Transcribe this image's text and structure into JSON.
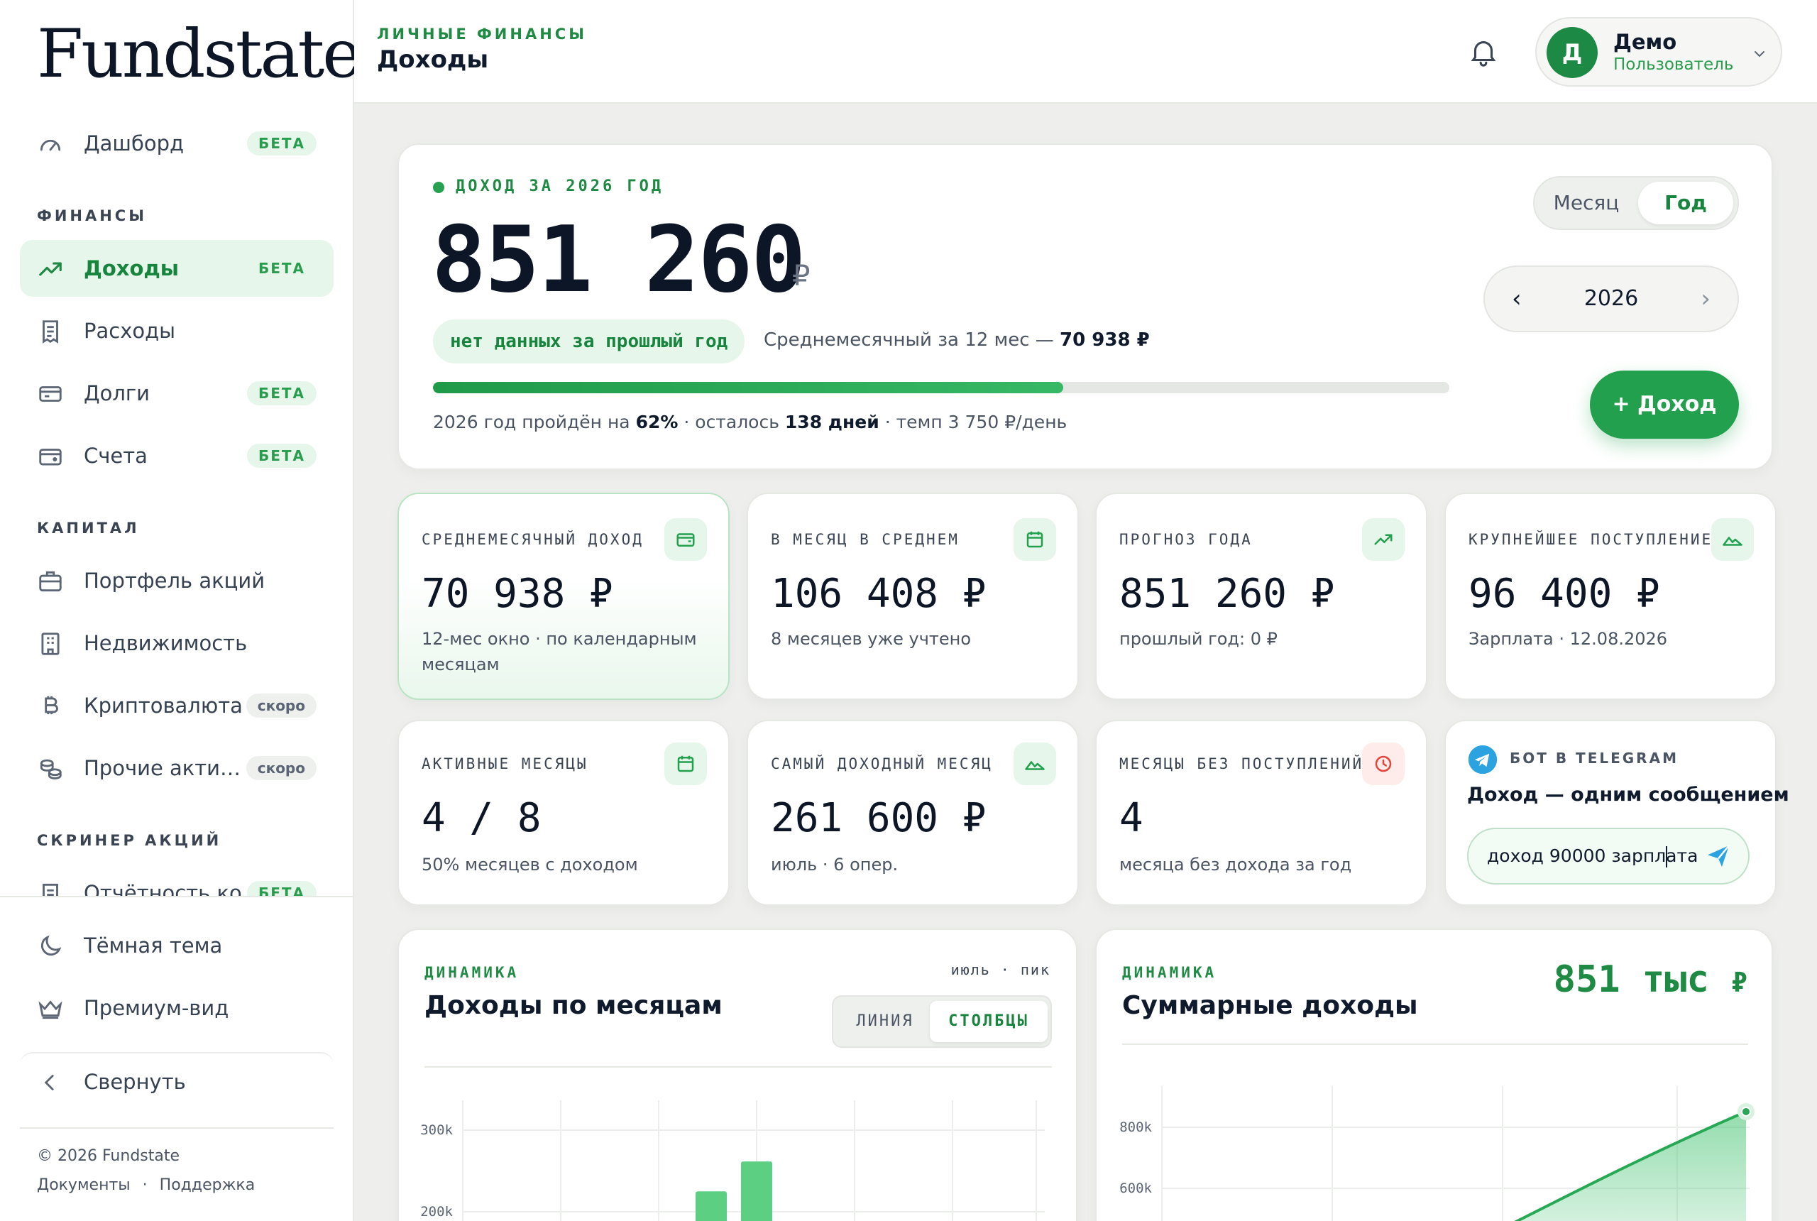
{
  "brand": {
    "logo": "Fundstate"
  },
  "sidebar": {
    "items": [
      {
        "label": "Дашборд",
        "badge": "БЕТА"
      },
      {
        "label": "Доходы",
        "badge": "БЕТА"
      },
      {
        "label": "Расходы",
        "badge": ""
      },
      {
        "label": "Долги",
        "badge": "БЕТА"
      },
      {
        "label": "Счета",
        "badge": "БЕТА"
      },
      {
        "label": "Портфель акций",
        "badge": ""
      },
      {
        "label": "Недвижимость",
        "badge": ""
      },
      {
        "label": "Криптовалюта",
        "badge": "скоро"
      },
      {
        "label": "Прочие акти…",
        "badge": "скоро"
      },
      {
        "label": "Отчётность ко…",
        "badge": "БЕТА"
      }
    ],
    "sections": {
      "finance": "ФИНАНСЫ",
      "capital": "КАПИТАЛ",
      "screener": "СКРИНЕР АКЦИЙ"
    },
    "bottom": {
      "dark_theme": "Тёмная тема",
      "premium": "Премиум-вид",
      "collapse": "Свернуть"
    },
    "footer": {
      "copyright": "© 2026 Fundstate",
      "docs": "Документы",
      "sep": "·",
      "support": "Поддержка"
    }
  },
  "header": {
    "section": "ЛИЧНЫЕ ФИНАНСЫ",
    "title": "Доходы",
    "user": {
      "initial": "Д",
      "name": "Демо",
      "role": "Пользователь"
    }
  },
  "hero": {
    "label": "ДОХОД ЗА 2026 ГОД",
    "value": "851 260",
    "currency": "₽",
    "pill": "нет данных за прошлый год",
    "avg_prefix": "Среднемесячный за 12 мес —",
    "avg_value": "70 938 ₽",
    "progress": 0.62,
    "foot_a": "2026 год пройдён на",
    "foot_pct": "62%",
    "foot_b": "· осталось",
    "foot_days": "138 дней",
    "foot_c": "· темп 3 750 ₽/день",
    "period_month": "Месяц",
    "period_year": "Год",
    "year": "2026",
    "prev": "‹",
    "next": "›",
    "add_button": "+ Доход"
  },
  "stats": [
    {
      "label": "СРЕДНЕМЕСЯЧНЫЙ ДОХОД",
      "value": "70 938 ₽",
      "sub": "12-мес окно · по календарным месяцам"
    },
    {
      "label": "В МЕСЯЦ В СРЕДНЕМ",
      "value": "106 408 ₽",
      "sub": "8 месяцев уже учтено"
    },
    {
      "label": "ПРОГНОЗ ГОДА",
      "value": "851 260 ₽",
      "sub": "прошлый год: 0 ₽"
    },
    {
      "label": "КРУПНЕЙШЕЕ ПОСТУПЛЕНИЕ",
      "value": "96 400 ₽",
      "sub": "Зарплата · 12.08.2026"
    },
    {
      "label": "АКТИВНЫЕ МЕСЯЦЫ",
      "value": "4 / 8",
      "sub": "50% месяцев с доходом"
    },
    {
      "label": "САМЫЙ ДОХОДНЫЙ МЕСЯЦ",
      "value": "261 600 ₽",
      "sub": "июль · 6 опер."
    },
    {
      "label": "МЕСЯЦЫ БЕЗ ПОСТУПЛЕНИЙ",
      "value": "4",
      "sub": "месяца без дохода за год"
    }
  ],
  "telegram": {
    "label": "БОТ В TELEGRAM",
    "title": "Доход — одним сообщением",
    "input_value": "доход 90000 зарплата"
  },
  "colors": {
    "accent": "#22a04d",
    "accent_dark": "#17853d",
    "accent_light": "#e7f6ea",
    "danger": "#e2453c"
  },
  "charts": {
    "monthly": {
      "kicker": "ДИНАМИКА",
      "title": "Доходы по месяцам",
      "peak": "июль · пик",
      "mode_line": "ЛИНИЯ",
      "mode_bars": "СТОЛБЦЫ"
    },
    "cumulative": {
      "kicker": "ДИНАМИКА",
      "title": "Суммарные доходы",
      "total_value": "851 тыс",
      "total_currency": "₽"
    }
  },
  "chart_data": [
    {
      "type": "bar",
      "title": "Доходы по месяцам",
      "y_ticks": [
        "300k",
        "200k"
      ],
      "y_tick_values": [
        300000,
        200000
      ],
      "values_visible": [
        225000,
        261600,
        0
      ],
      "peak_label": "июль"
    },
    {
      "type": "area",
      "title": "Суммарные доходы",
      "y_ticks": [
        "800k",
        "600k"
      ],
      "y_tick_values": [
        800000,
        600000
      ],
      "last_value": 851260
    }
  ]
}
